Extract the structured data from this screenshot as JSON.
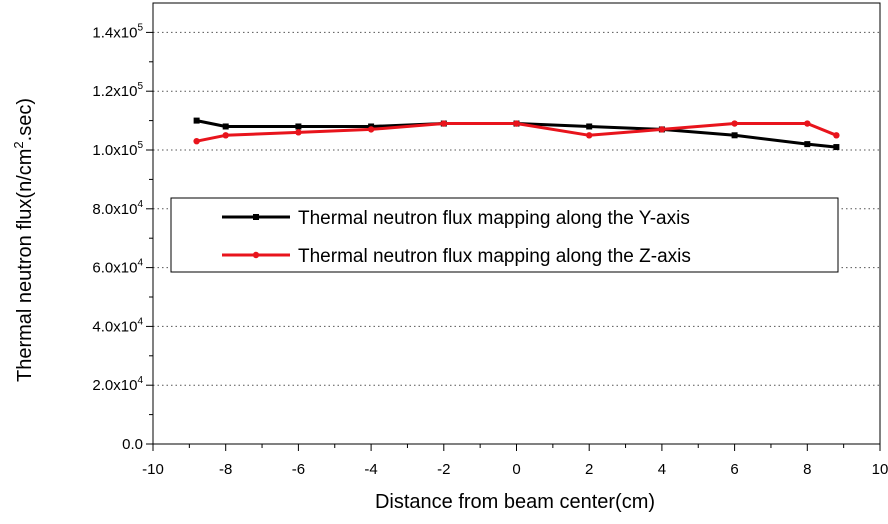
{
  "chart_data": {
    "type": "line",
    "xlabel": "Distance from beam center(cm)",
    "ylabel_main": "Thermal neutron flux(n/cm",
    "ylabel_sup": "2",
    "ylabel_tail": ".sec)",
    "xlim": [
      -10,
      10
    ],
    "ylim": [
      0,
      150000
    ],
    "grid": "horizontal dotted",
    "legend_position": "middle-left",
    "x_ticks": [
      -10,
      -8,
      -6,
      -4,
      -2,
      0,
      2,
      4,
      6,
      8,
      10
    ],
    "x_tick_labels": [
      "-10",
      "-8",
      "-6",
      "-4",
      "-2",
      "0",
      "2",
      "4",
      "6",
      "8",
      "10"
    ],
    "y_ticks": [
      {
        "value": 0,
        "label": "0.0",
        "exp": ""
      },
      {
        "value": 20000,
        "label": "2.0x10",
        "exp": "4"
      },
      {
        "value": 40000,
        "label": "4.0x10",
        "exp": "4"
      },
      {
        "value": 60000,
        "label": "6.0x10",
        "exp": "4"
      },
      {
        "value": 80000,
        "label": "8.0x10",
        "exp": "4"
      },
      {
        "value": 100000,
        "label": "1.0x10",
        "exp": "5"
      },
      {
        "value": 120000,
        "label": "1.2x10",
        "exp": "5"
      },
      {
        "value": 140000,
        "label": "1.4x10",
        "exp": "5"
      }
    ],
    "series": [
      {
        "name": "Thermal neutron flux mapping along the Y-axis",
        "color": "#000000",
        "marker": "square",
        "x": [
          -8.8,
          -8,
          -6,
          -4,
          -2,
          0,
          2,
          4,
          6,
          8,
          8.8
        ],
        "y": [
          110000,
          108000,
          108000,
          108000,
          109000,
          109000,
          108000,
          107000,
          105000,
          102000,
          101000
        ]
      },
      {
        "name": "Thermal neutron flux mapping along the Z-axis",
        "color": "#e8141c",
        "marker": "circle",
        "x": [
          -8.8,
          -8,
          -6,
          -4,
          -2,
          0,
          2,
          4,
          6,
          8,
          8.8
        ],
        "y": [
          103000,
          105000,
          106000,
          107000,
          109000,
          109000,
          105000,
          107000,
          109000,
          109000,
          105000
        ]
      }
    ]
  }
}
